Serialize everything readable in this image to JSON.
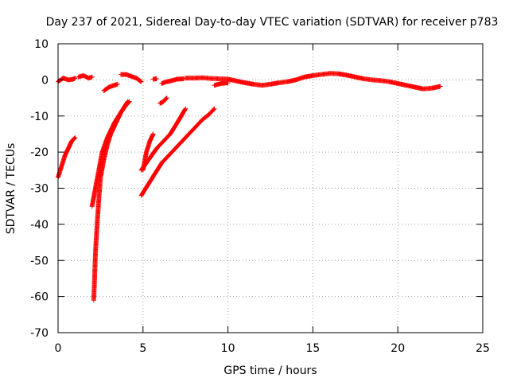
{
  "chart_data": {
    "type": "scatter",
    "title": "Day 237 of 2021, Sidereal Day-to-day VTEC variation (SDTVAR) for receiver p783",
    "xlabel": "GPS time / hours",
    "ylabel": "SDTVAR / TECUs",
    "xlim": [
      0,
      25
    ],
    "ylim": [
      -70,
      10
    ],
    "xticks": [
      0,
      5,
      10,
      15,
      20,
      25
    ],
    "yticks": [
      10,
      0,
      -10,
      -20,
      -30,
      -40,
      -50,
      -60,
      -70
    ],
    "xtick_labels": [
      "0",
      "5",
      "10",
      "15",
      "20",
      "25"
    ],
    "ytick_labels": [
      "10",
      "0",
      "-10",
      "-20",
      "-30",
      "-40",
      "-50",
      "-60",
      "-70"
    ],
    "grid": true,
    "marker": "+",
    "color": "#ff0000",
    "series": [
      {
        "name": "SDTVAR",
        "segments": [
          [
            [
              0.0,
              -27
            ],
            [
              0.2,
              -24
            ],
            [
              0.4,
              -21
            ],
            [
              0.6,
              -19
            ],
            [
              0.8,
              -17
            ],
            [
              1.0,
              -16
            ]
          ],
          [
            [
              0.0,
              -0.5
            ],
            [
              0.3,
              0.5
            ],
            [
              0.6,
              0
            ],
            [
              0.9,
              0.2
            ],
            [
              1.0,
              0.5
            ]
          ],
          [
            [
              1.2,
              0.8
            ],
            [
              1.5,
              1.2
            ],
            [
              1.8,
              0.5
            ],
            [
              2.0,
              0.8
            ]
          ],
          [
            [
              2.1,
              -61
            ],
            [
              2.15,
              -55
            ],
            [
              2.2,
              -48
            ],
            [
              2.3,
              -40
            ],
            [
              2.4,
              -33
            ],
            [
              2.5,
              -27
            ],
            [
              2.7,
              -22
            ],
            [
              2.9,
              -18
            ],
            [
              3.1,
              -15
            ],
            [
              3.4,
              -12
            ],
            [
              3.7,
              -9
            ],
            [
              4.0,
              -7
            ],
            [
              4.2,
              -6
            ]
          ],
          [
            [
              2.0,
              -35
            ],
            [
              2.2,
              -30
            ],
            [
              2.4,
              -25
            ],
            [
              2.6,
              -20
            ],
            [
              2.9,
              -16
            ],
            [
              3.3,
              -12
            ],
            [
              3.7,
              -9
            ],
            [
              4.1,
              -6
            ]
          ],
          [
            [
              2.7,
              -3
            ],
            [
              3.0,
              -2
            ],
            [
              3.3,
              -1.5
            ],
            [
              3.5,
              -1.2
            ]
          ],
          [
            [
              3.7,
              1.5
            ],
            [
              4.0,
              1.5
            ],
            [
              4.3,
              1.0
            ],
            [
              4.6,
              0.5
            ],
            [
              4.9,
              -0.5
            ]
          ],
          [
            [
              4.9,
              -25
            ],
            [
              5.2,
              -23
            ],
            [
              5.5,
              -21
            ],
            [
              5.8,
              -19
            ],
            [
              6.2,
              -17
            ],
            [
              6.6,
              -15
            ],
            [
              7.0,
              -12
            ],
            [
              7.5,
              -8
            ]
          ],
          [
            [
              5.0,
              -25
            ],
            [
              5.2,
              -20
            ],
            [
              5.4,
              -17
            ],
            [
              5.6,
              -15
            ]
          ],
          [
            [
              4.9,
              -32
            ],
            [
              5.3,
              -29
            ],
            [
              5.7,
              -26
            ],
            [
              6.1,
              -23
            ],
            [
              6.5,
              -21
            ],
            [
              6.9,
              -19
            ],
            [
              7.3,
              -17
            ],
            [
              7.7,
              -15
            ],
            [
              8.1,
              -13
            ],
            [
              8.5,
              -11
            ],
            [
              8.9,
              -9.5
            ],
            [
              9.2,
              -8
            ]
          ],
          [
            [
              6.0,
              -6.5
            ],
            [
              6.2,
              -6
            ],
            [
              6.4,
              -5
            ]
          ],
          [
            [
              6.1,
              -1
            ],
            [
              6.4,
              -0.5
            ],
            [
              6.7,
              -0.2
            ],
            [
              7.0,
              0.2
            ],
            [
              7.4,
              0.3
            ]
          ],
          [
            [
              5.6,
              0.2
            ],
            [
              5.8,
              0.3
            ]
          ],
          [
            [
              7.5,
              0.5
            ],
            [
              8.0,
              0.5
            ],
            [
              8.5,
              0.6
            ],
            [
              9.0,
              0.4
            ],
            [
              9.5,
              0.3
            ],
            [
              10.0,
              0.2
            ],
            [
              10.5,
              -0.3
            ],
            [
              11.0,
              -0.8
            ],
            [
              11.5,
              -1.2
            ],
            [
              12.0,
              -1.5
            ],
            [
              12.5,
              -1.2
            ],
            [
              13.0,
              -0.8
            ],
            [
              13.5,
              -0.5
            ],
            [
              14.0,
              0
            ],
            [
              14.5,
              0.8
            ],
            [
              15.0,
              1.2
            ],
            [
              15.5,
              1.5
            ],
            [
              16.0,
              1.8
            ],
            [
              16.5,
              1.7
            ],
            [
              17.0,
              1.3
            ],
            [
              17.5,
              0.8
            ],
            [
              18.0,
              0.3
            ],
            [
              18.5,
              0
            ],
            [
              19.0,
              -0.2
            ],
            [
              19.5,
              -0.5
            ],
            [
              20.0,
              -1
            ],
            [
              20.5,
              -1.5
            ],
            [
              21.0,
              -2.0
            ],
            [
              21.5,
              -2.5
            ],
            [
              22.0,
              -2.3
            ],
            [
              22.5,
              -1.8
            ]
          ],
          [
            [
              9.2,
              -1.5
            ],
            [
              9.6,
              -1
            ],
            [
              10.0,
              -0.8
            ]
          ]
        ]
      }
    ]
  }
}
